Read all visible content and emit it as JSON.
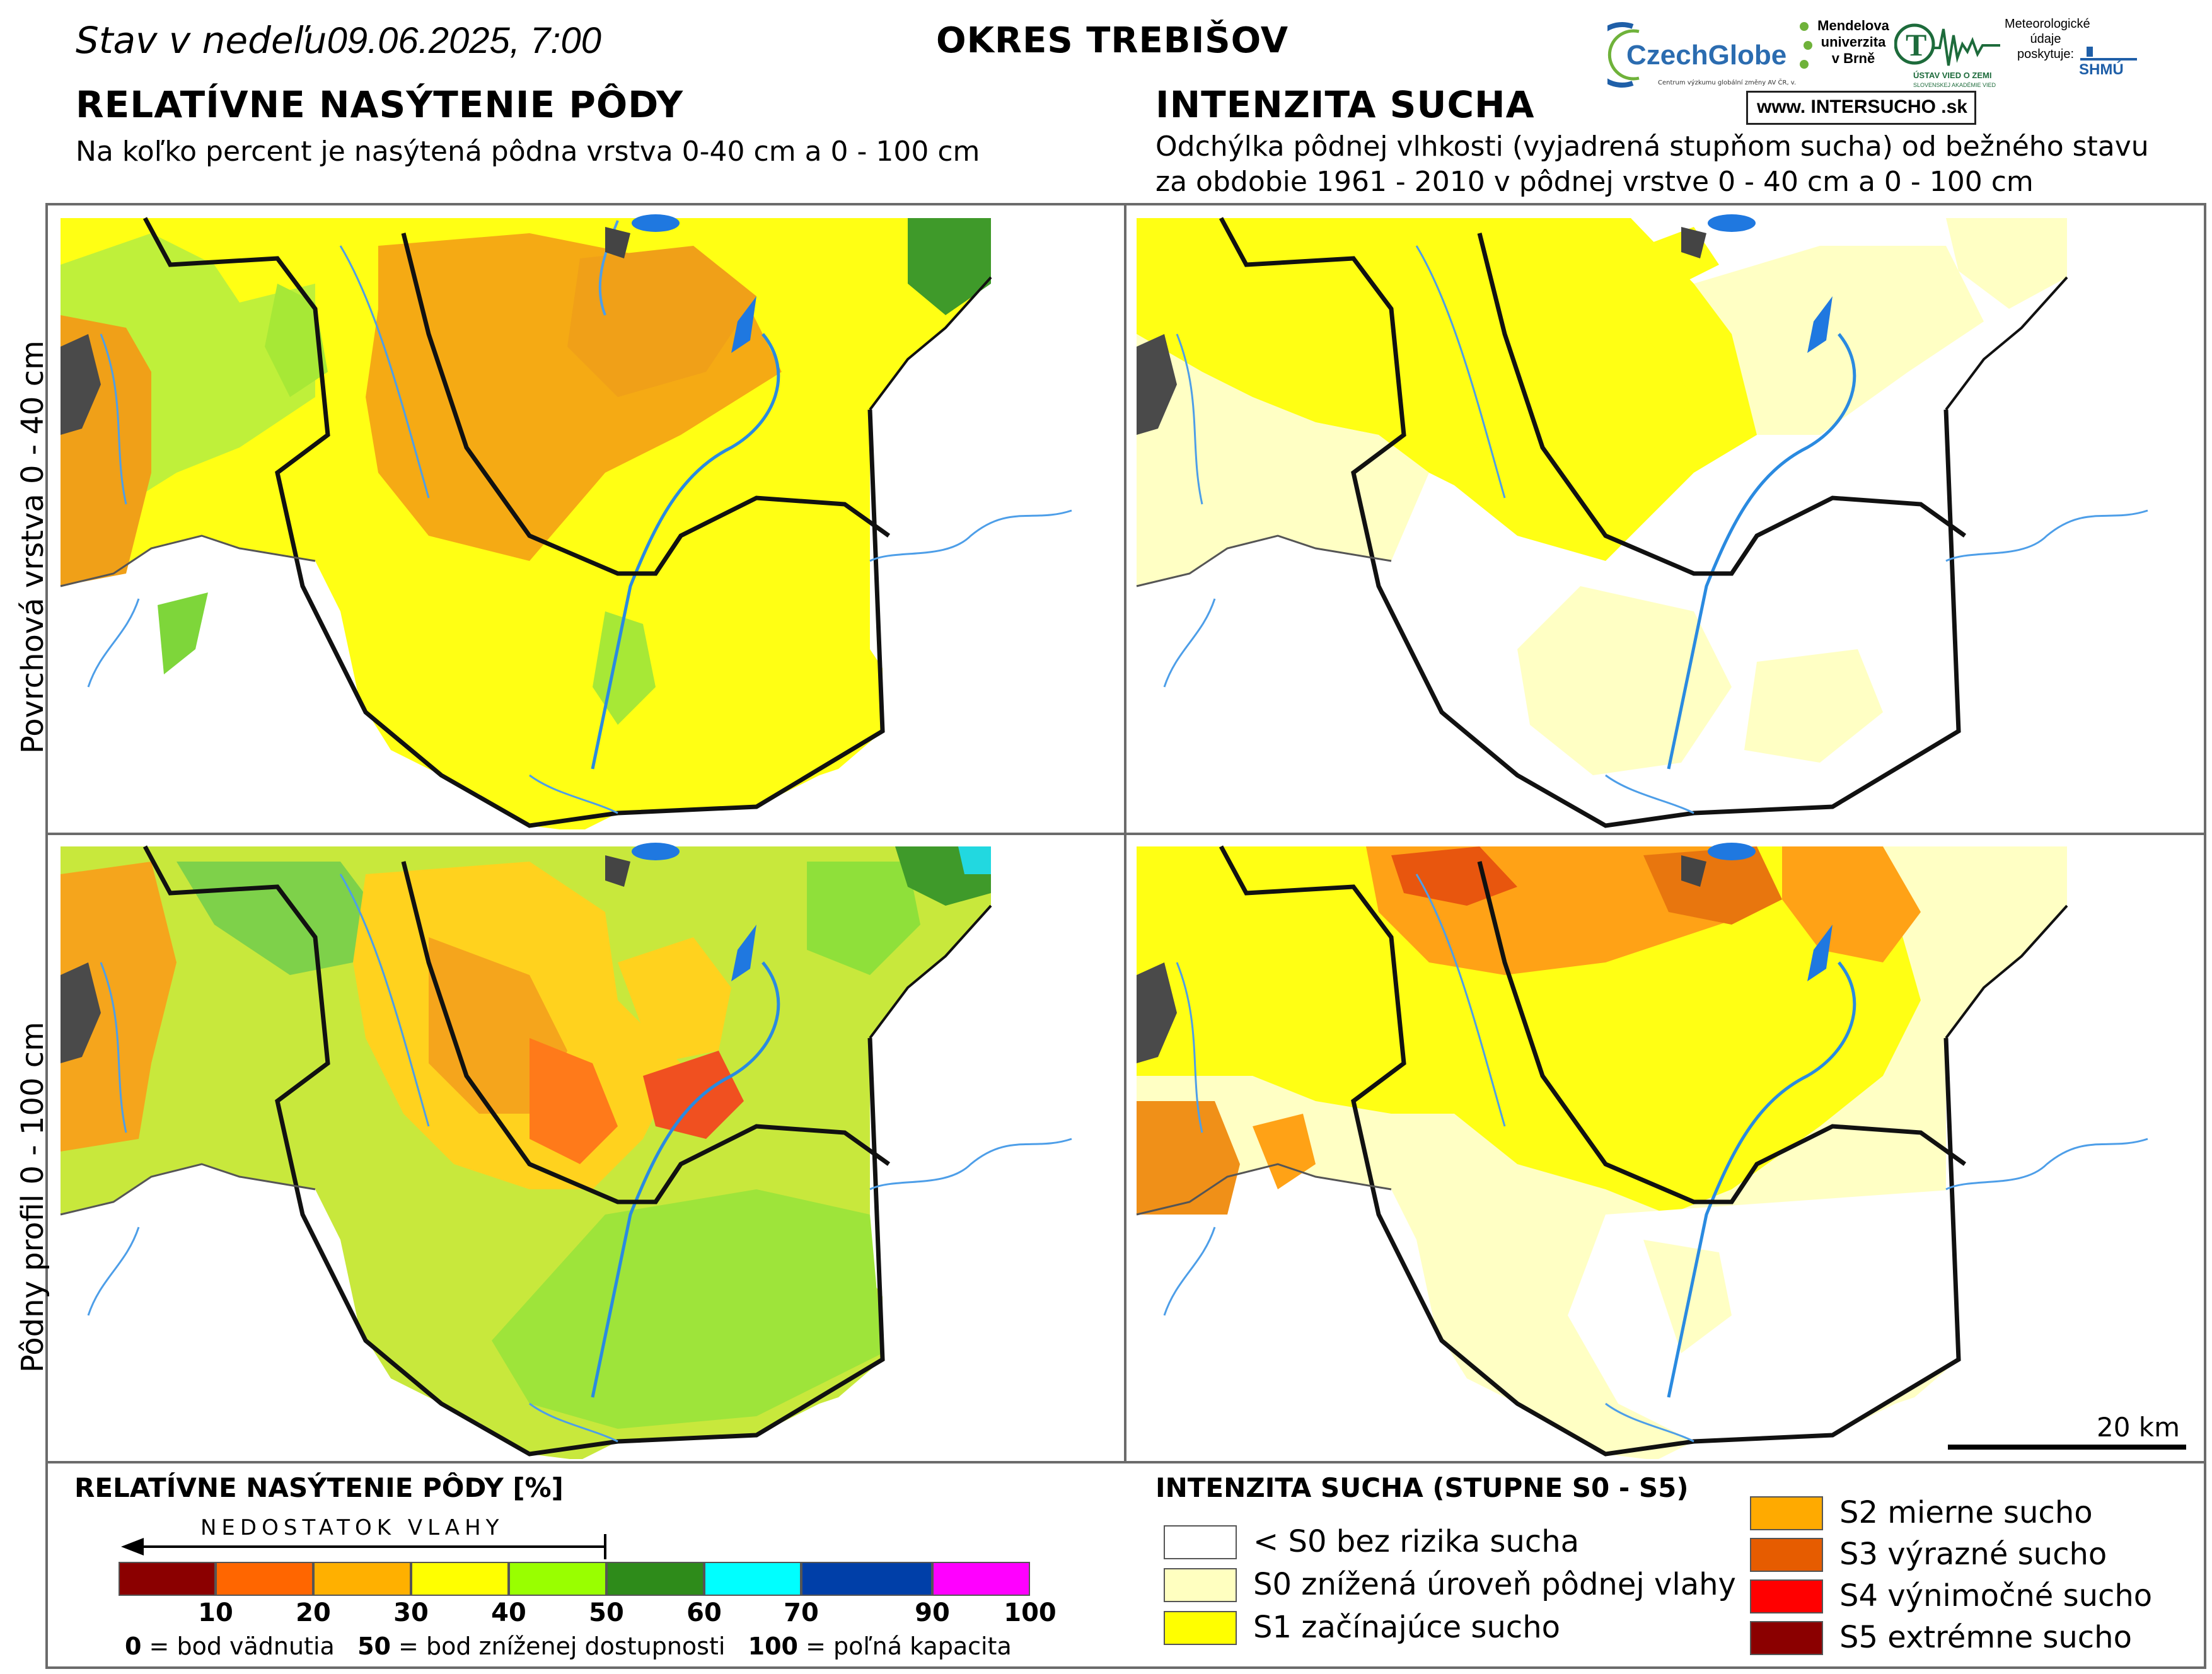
{
  "header": {
    "date_prefix": "Stav v nedeľu",
    "date_value": "09.06.2025, 7:00",
    "district": "OKRES  TREBIŠOV"
  },
  "logos": {
    "czechglobe": "CzechGlobe",
    "czechglobe_sub": "Centrum výzkumu globální změny AV ČR, v. v. i.",
    "mendel": "Mendelova univerzita v Brně",
    "uvoz": "ÚSTAV VIED O ZEMI",
    "uvoz_sub": "SLOVENSKEJ AKADÉMIE VIED",
    "meteo": "Meteorologické údaje poskytuje:",
    "shmu": "SHMÚ",
    "intersucho": "www. INTERSUCHO .sk"
  },
  "left_section": {
    "title": "RELATÍVNE NASÝTENIE PÔDY",
    "subtitle": "Na koľko percent je nasýtená pôdna vrstva 0-40 cm a 0 - 100 cm"
  },
  "right_section": {
    "title": "INTENZITA SUCHA",
    "subtitle_line1": "Odchýlka pôdnej vlhkosti (vyjadrená stupňom sucha) od bežného stavu",
    "subtitle_line2": "za obdobie 1961 - 2010 v pôdnej vrstve 0 - 40 cm a 0 - 100 cm"
  },
  "rows": {
    "top_label": "Povrchová vrstva 0 - 40 cm",
    "bottom_label": "Pôdny profil 0 - 100 cm"
  },
  "scale_bar": {
    "label": "20 km"
  },
  "legend_saturation": {
    "title": "RELATÍVNE NASÝTENIE PÔDY [%]",
    "arrow_label": "NEDOSTATOK VLAHY",
    "classes": [
      {
        "from": 0,
        "to": 10,
        "color": "#8b0000"
      },
      {
        "from": 10,
        "to": 20,
        "color": "#ff6600"
      },
      {
        "from": 20,
        "to": 30,
        "color": "#ffb000"
      },
      {
        "from": 30,
        "to": 40,
        "color": "#ffff00"
      },
      {
        "from": 40,
        "to": 50,
        "color": "#99ff00"
      },
      {
        "from": 50,
        "to": 60,
        "color": "#2e8b1a"
      },
      {
        "from": 60,
        "to": 70,
        "color": "#00ffff"
      },
      {
        "from": 70,
        "to": 90,
        "color": "#003fa8"
      },
      {
        "from": 90,
        "to": 100,
        "color": "#ff00ff"
      }
    ],
    "ticks": [
      "10",
      "20",
      "30",
      "40",
      "50",
      "60",
      "70",
      "90",
      "100"
    ],
    "note_0": "0",
    "note_0_text": " = bod vädnutia",
    "note_50": "50",
    "note_50_text": " = bod zníženej dostupnosti",
    "note_100": "100",
    "note_100_text": " = poľná kapacita"
  },
  "legend_drought": {
    "title": "INTENZITA SUCHA (STUPNE S0 - S5)",
    "items": [
      {
        "label": "< S0 bez rizika sucha",
        "color": "#ffffff"
      },
      {
        "label": "S0 znížená úroveň pôdnej vlahy",
        "color": "#ffffc0"
      },
      {
        "label": "S1 začínajúce sucho",
        "color": "#ffff00"
      },
      {
        "label": "S2 mierne sucho",
        "color": "#ffaa00"
      },
      {
        "label": "S3 výrazné sucho",
        "color": "#e65c00"
      },
      {
        "label": "S4 výnimočné sucho",
        "color": "#ff0000"
      },
      {
        "label": "S5 extrémne sucho",
        "color": "#8b0000"
      }
    ]
  }
}
